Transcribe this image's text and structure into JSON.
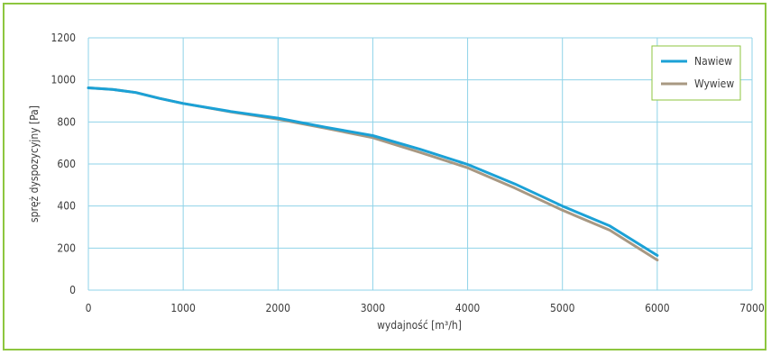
{
  "chart_data": {
    "type": "line",
    "title": "",
    "xlabel": "wydajność  [m³/h]",
    "ylabel": "spręż dyspozycyjny  [Pa]",
    "xlim": [
      0,
      7000
    ],
    "ylim": [
      0,
      1200
    ],
    "x_ticks": [
      0,
      1000,
      2000,
      3000,
      4000,
      5000,
      6000,
      7000
    ],
    "y_ticks": [
      0,
      200,
      400,
      600,
      800,
      1000,
      1200
    ],
    "grid": true,
    "legend_position": "top-right",
    "series": [
      {
        "name": "Nawiew",
        "color": "#1ba1d6",
        "x": [
          0,
          250,
          500,
          750,
          1000,
          1500,
          2000,
          2500,
          3000,
          3500,
          4000,
          4500,
          5000,
          5500,
          6000
        ],
        "y": [
          962,
          955,
          940,
          912,
          888,
          850,
          818,
          775,
          735,
          670,
          598,
          505,
          400,
          305,
          165
        ]
      },
      {
        "name": "Wywiew",
        "color": "#a89882",
        "x": [
          0,
          250,
          500,
          750,
          1000,
          1500,
          2000,
          2500,
          3000,
          3500,
          4000,
          4500,
          5000,
          5500,
          6000
        ],
        "y": [
          962,
          955,
          940,
          912,
          888,
          848,
          813,
          770,
          725,
          655,
          582,
          485,
          380,
          285,
          143
        ]
      }
    ]
  }
}
